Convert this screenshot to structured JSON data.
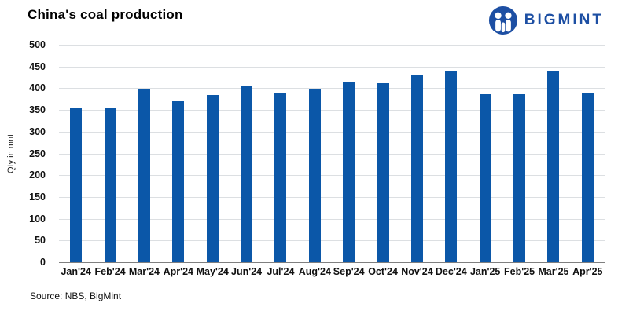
{
  "header": {
    "title": "China's coal production",
    "brand_name": "BIGMINT",
    "brand_color": "#1d4fa3"
  },
  "chart_data": {
    "type": "bar",
    "title": "China's coal production",
    "categories": [
      "Jan'24",
      "Feb'24",
      "Mar'24",
      "Apr'24",
      "May'24",
      "Jun'24",
      "Jul'24",
      "Aug'24",
      "Sep'24",
      "Oct'24",
      "Nov'24",
      "Dec'24",
      "Jan'25",
      "Feb'25",
      "Mar'25",
      "Apr'25"
    ],
    "values": [
      354,
      354,
      399,
      370,
      384,
      405,
      390,
      398,
      414,
      412,
      429,
      440,
      386,
      386,
      441,
      390
    ],
    "xlabel": "",
    "ylabel": "Qty in mnt",
    "ylim": [
      0,
      500
    ],
    "yticks": [
      0,
      50,
      100,
      150,
      200,
      250,
      300,
      350,
      400,
      450,
      500
    ],
    "grid": true,
    "legend": "none",
    "bar_color": "#0b57a8",
    "gridline_color": "#dcdfe2",
    "axisline_color": "#7f7f7f"
  },
  "footer": {
    "source": "Source: NBS, BigMint"
  }
}
